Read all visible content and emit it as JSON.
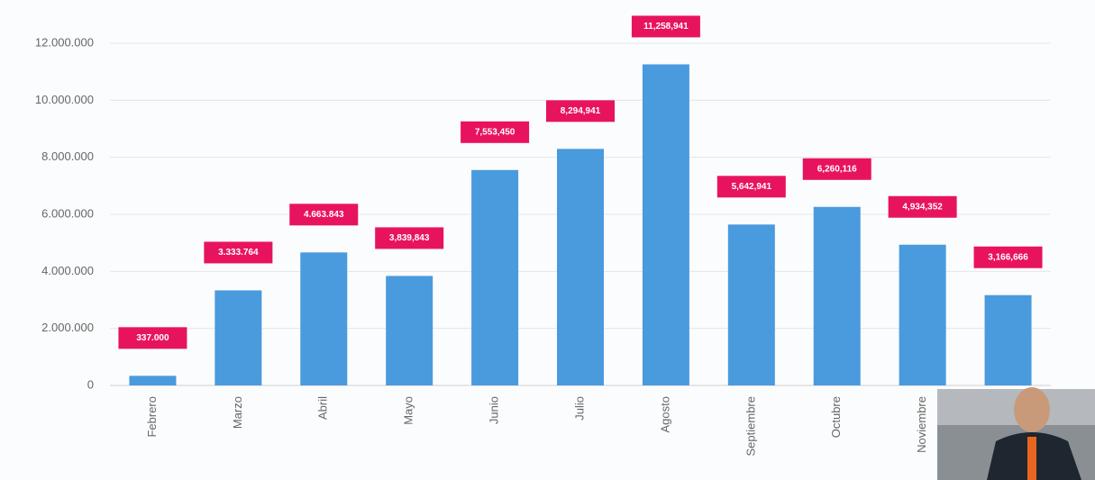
{
  "chart_data": {
    "type": "bar",
    "categories": [
      "Febrero",
      "Marzo",
      "Abril",
      "Mayo",
      "Junio",
      "Julio",
      "Agosto",
      "Septiembre",
      "Octubre",
      "Noviembre",
      null
    ],
    "values": [
      337000,
      3333764,
      4663843,
      3839843,
      7553450,
      8294941,
      11258941,
      5642941,
      6260116,
      4934352,
      3166666
    ],
    "value_labels": [
      "337.000",
      "3.333.764",
      "4.663.843",
      "3,839,843",
      "7,553,450",
      "8,294,941",
      "11,258,941",
      "5,642,941",
      "6,260,116",
      "4,934,352",
      "3,166,666"
    ],
    "color": "#4a9ade",
    "label_color": "#e8135e",
    "ylim": [
      0,
      12000000
    ],
    "yticks": [
      0,
      {
        "value": 2000000,
        "label": "2.000.000"
      },
      {
        "value": 4000000,
        "label": "4.000.000"
      },
      {
        "value": 6000000,
        "label": "6.000.000"
      },
      {
        "value": 8000000,
        "label": "8.000.000"
      },
      {
        "value": 10000000,
        "label": "10.000.000"
      },
      {
        "value": 12000000,
        "label": "12.000.000"
      }
    ],
    "grid": true
  }
}
